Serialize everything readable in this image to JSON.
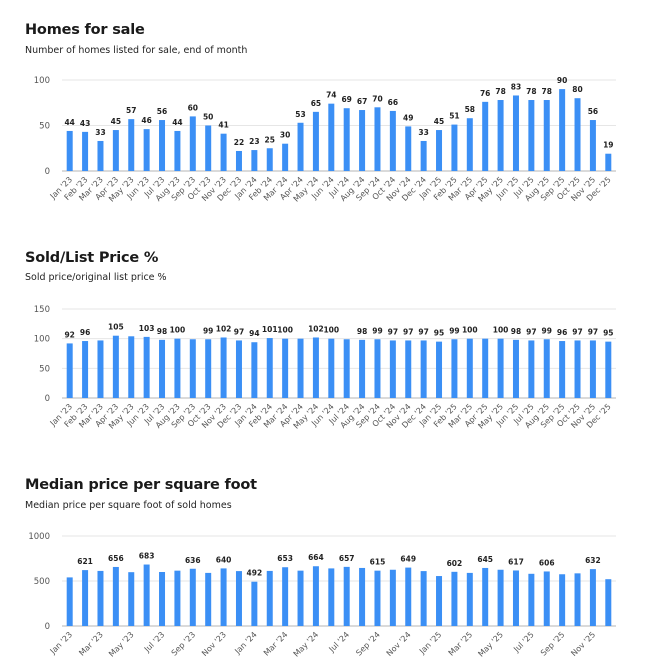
{
  "colors": {
    "bar": "#3b8ff5",
    "grid": "#e6e6e6",
    "axis": "#b5b5b5"
  },
  "chart_data": [
    {
      "type": "bar",
      "title": "Homes for sale",
      "subtitle": "Number of homes listed for sale, end of month",
      "xlabel": "",
      "ylabel": "",
      "ylim": [
        0,
        100
      ],
      "yticks": [
        0,
        50,
        100
      ],
      "grid": true,
      "categories": [
        "Jan '23",
        "Feb '23",
        "Mar '23",
        "Apr '23",
        "May '23",
        "Jun '23",
        "Jul '23",
        "Aug '23",
        "Sep '23",
        "Oct '23",
        "Nov '23",
        "Dec '23",
        "Jan '24",
        "Feb '24",
        "Mar '24",
        "Apr '24",
        "May '24",
        "Jun '24",
        "Jul '24",
        "Aug '24",
        "Sep '24",
        "Oct '24",
        "Nov '24",
        "Dec '24",
        "Jan '25",
        "Feb '25",
        "Mar '25",
        "Apr '25",
        "May '25",
        "Jun '25",
        "Jul '25",
        "Aug '25",
        "Sep '25",
        "Oct '25",
        "Nov '25",
        "Dec '25"
      ],
      "x_tick_labels": [
        "Jan '23",
        "Feb '23",
        "Mar '23",
        "Apr '23",
        "May '23",
        "Jun '23",
        "Jul '23",
        "Aug '23",
        "Sep '23",
        "Oct '23",
        "Nov '23",
        "Dec '23",
        "Jan '24",
        "Feb '24",
        "Mar '24",
        "Apr '24",
        "May '24",
        "Jun '24",
        "Jul '24",
        "Aug '24",
        "Sep '24",
        "Oct '24",
        "Nov '24",
        "Dec '24",
        "Jan '25",
        "Feb '25",
        "Mar '25",
        "Apr '25",
        "May '25",
        "Jun '25",
        "Jul '25",
        "Aug '25",
        "Sep '25",
        "Oct '25",
        "Nov '25",
        "Dec '25"
      ],
      "values": [
        44,
        43,
        33,
        45,
        57,
        46,
        56,
        44,
        60,
        50,
        41,
        22,
        23,
        25,
        30,
        53,
        65,
        74,
        69,
        67,
        70,
        66,
        49,
        33,
        45,
        51,
        58,
        76,
        78,
        83,
        78,
        78,
        90,
        80,
        56,
        19
      ],
      "data_labels": [
        44,
        43,
        33,
        45,
        57,
        46,
        56,
        44,
        60,
        50,
        41,
        22,
        23,
        25,
        30,
        53,
        65,
        74,
        69,
        67,
        70,
        66,
        49,
        33,
        45,
        51,
        58,
        76,
        78,
        83,
        78,
        78,
        90,
        80,
        56,
        19
      ]
    },
    {
      "type": "bar",
      "title": "Sold/List Price %",
      "subtitle": "Sold price/original list price %",
      "xlabel": "",
      "ylabel": "",
      "ylim": [
        0,
        150
      ],
      "yticks": [
        0,
        50,
        100,
        150
      ],
      "grid": true,
      "categories": [
        "Jan '23",
        "Feb '23",
        "Mar '23",
        "Apr '23",
        "May '23",
        "Jun '23",
        "Jul '23",
        "Aug '23",
        "Sep '23",
        "Oct '23",
        "Nov '23",
        "Dec '23",
        "Jan '24",
        "Feb '24",
        "Mar '24",
        "Apr '24",
        "May '24",
        "Jun '24",
        "Jul '24",
        "Aug '24",
        "Sep '24",
        "Oct '24",
        "Nov '24",
        "Dec '24",
        "Jan '25",
        "Feb '25",
        "Mar '25",
        "Apr '25",
        "May '25",
        "Jun '25",
        "Jul '25",
        "Aug '25",
        "Sep '25",
        "Oct '25",
        "Nov '25",
        "Dec '25"
      ],
      "x_tick_labels": [
        "Jan '23",
        "Feb '23",
        "Mar '23",
        "Apr '23",
        "May '23",
        "Jun '23",
        "Jul '23",
        "Aug '23",
        "Sep '23",
        "Oct '23",
        "Nov '23",
        "Dec '23",
        "Jan '24",
        "Feb '24",
        "Mar '24",
        "Apr '24",
        "May '24",
        "Jun '24",
        "Jul '24",
        "Aug '24",
        "Sep '24",
        "Oct '24",
        "Nov '24",
        "Dec '24",
        "Jan '25",
        "Feb '25",
        "Mar '25",
        "Apr '25",
        "May '25",
        "Jun '25",
        "Jul '25",
        "Aug '25",
        "Sep '25",
        "Oct '25",
        "Nov '25",
        "Dec '25"
      ],
      "values": [
        92,
        96,
        97,
        105,
        104,
        103,
        98,
        100,
        99,
        99,
        102,
        97,
        94,
        101,
        100,
        100,
        102,
        100,
        99,
        98,
        99,
        97,
        97,
        97,
        95,
        99,
        100,
        100,
        100,
        98,
        97,
        99,
        96,
        97,
        97,
        95
      ],
      "data_labels": [
        92,
        96,
        null,
        105,
        null,
        103,
        98,
        100,
        null,
        99,
        102,
        97,
        94,
        101,
        100,
        null,
        102,
        100,
        null,
        98,
        99,
        97,
        97,
        97,
        95,
        99,
        100,
        null,
        100,
        98,
        97,
        99,
        96,
        97,
        97,
        95
      ]
    },
    {
      "type": "bar",
      "title": "Median price per square foot",
      "subtitle": "Median price per square foot of sold homes",
      "xlabel": "",
      "ylabel": "",
      "ylim": [
        0,
        1000
      ],
      "yticks": [
        0,
        500,
        1000
      ],
      "grid": true,
      "categories": [
        "Jan '23",
        "Feb '23",
        "Mar '23",
        "Apr '23",
        "May '23",
        "Jun '23",
        "Jul '23",
        "Aug '23",
        "Sep '23",
        "Oct '23",
        "Nov '23",
        "Dec '23",
        "Jan '24",
        "Feb '24",
        "Mar '24",
        "Apr '24",
        "May '24",
        "Jun '24",
        "Jul '24",
        "Aug '24",
        "Sep '24",
        "Oct '24",
        "Nov '24",
        "Dec '24",
        "Jan '25",
        "Feb '25",
        "Mar '25",
        "Apr '25",
        "May '25",
        "Jun '25",
        "Jul '25",
        "Aug '25",
        "Sep '25",
        "Oct '25",
        "Nov '25",
        "Dec '25"
      ],
      "x_tick_labels": [
        "Jan '23",
        "",
        "Mar '23",
        "",
        "May '23",
        "",
        "Jul '23",
        "",
        "Sep '23",
        "",
        "Nov '23",
        "",
        "Jan '24",
        "",
        "Mar '24",
        "",
        "May '24",
        "",
        "Jul '24",
        "",
        "Sep '24",
        "",
        "Nov '24",
        "",
        "Jan '25",
        "",
        "Mar '25",
        "",
        "May '25",
        "",
        "Jul '25",
        "",
        "Sep '25",
        "",
        "Nov '25",
        ""
      ],
      "values": [
        540,
        621,
        612,
        656,
        598,
        683,
        600,
        615,
        636,
        590,
        640,
        610,
        492,
        612,
        653,
        615,
        664,
        640,
        657,
        645,
        615,
        625,
        649,
        610,
        555,
        602,
        590,
        645,
        625,
        617,
        580,
        606,
        575,
        585,
        632,
        520
      ],
      "data_labels": [
        null,
        621,
        null,
        656,
        null,
        683,
        null,
        null,
        636,
        null,
        640,
        null,
        492,
        null,
        653,
        null,
        664,
        null,
        657,
        null,
        615,
        null,
        649,
        null,
        null,
        602,
        null,
        645,
        null,
        617,
        null,
        606,
        null,
        null,
        632,
        null
      ]
    }
  ]
}
